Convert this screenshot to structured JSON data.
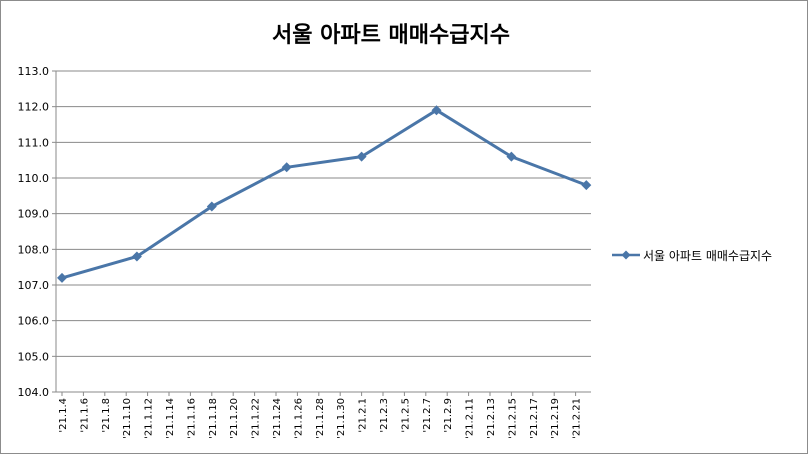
{
  "chart_data": {
    "type": "line",
    "title": "서울 아파트 매매수급지수",
    "xlabel": "",
    "ylabel": "",
    "categories": [
      "'21.1.4",
      "'21.1.6",
      "'21.1.8",
      "'21.1.10",
      "'21.1.12",
      "'21.1.14",
      "'21.1.16",
      "'21.1.18",
      "'21.1.20",
      "'21.1.22",
      "'21.1.24",
      "'21.1.26",
      "'21.1.28",
      "'21.1.30",
      "'21.2.1",
      "'21.2.3",
      "'21.2.5",
      "'21.2.7",
      "'21.2.9",
      "'21.2.11",
      "'21.2.13",
      "'21.2.15",
      "'21.2.17",
      "'21.2.19",
      "'21.2.21"
    ],
    "series": [
      {
        "name": "서울 아파트 매매수급지수",
        "points": [
          {
            "x": "'21.1.4",
            "y": 107.2
          },
          {
            "x": "'21.1.11",
            "y": 107.8
          },
          {
            "x": "'21.1.18",
            "y": 109.2
          },
          {
            "x": "'21.1.25",
            "y": 110.3
          },
          {
            "x": "'21.2.1",
            "y": 110.6
          },
          {
            "x": "'21.2.8",
            "y": 111.9
          },
          {
            "x": "'21.2.15",
            "y": 110.6
          },
          {
            "x": "'21.2.22",
            "y": 109.8
          }
        ]
      }
    ],
    "x_dates": [
      "2021-01-04",
      "2021-01-11",
      "2021-01-18",
      "2021-01-25",
      "2021-02-01",
      "2021-02-08",
      "2021-02-15",
      "2021-02-22"
    ],
    "ylim": [
      104.0,
      113.0
    ],
    "yticks": [
      "104.0",
      "105.0",
      "106.0",
      "107.0",
      "108.0",
      "109.0",
      "110.0",
      "111.0",
      "112.0",
      "113.0"
    ],
    "grid": true,
    "legend": "right",
    "color": "#4a76a8"
  }
}
